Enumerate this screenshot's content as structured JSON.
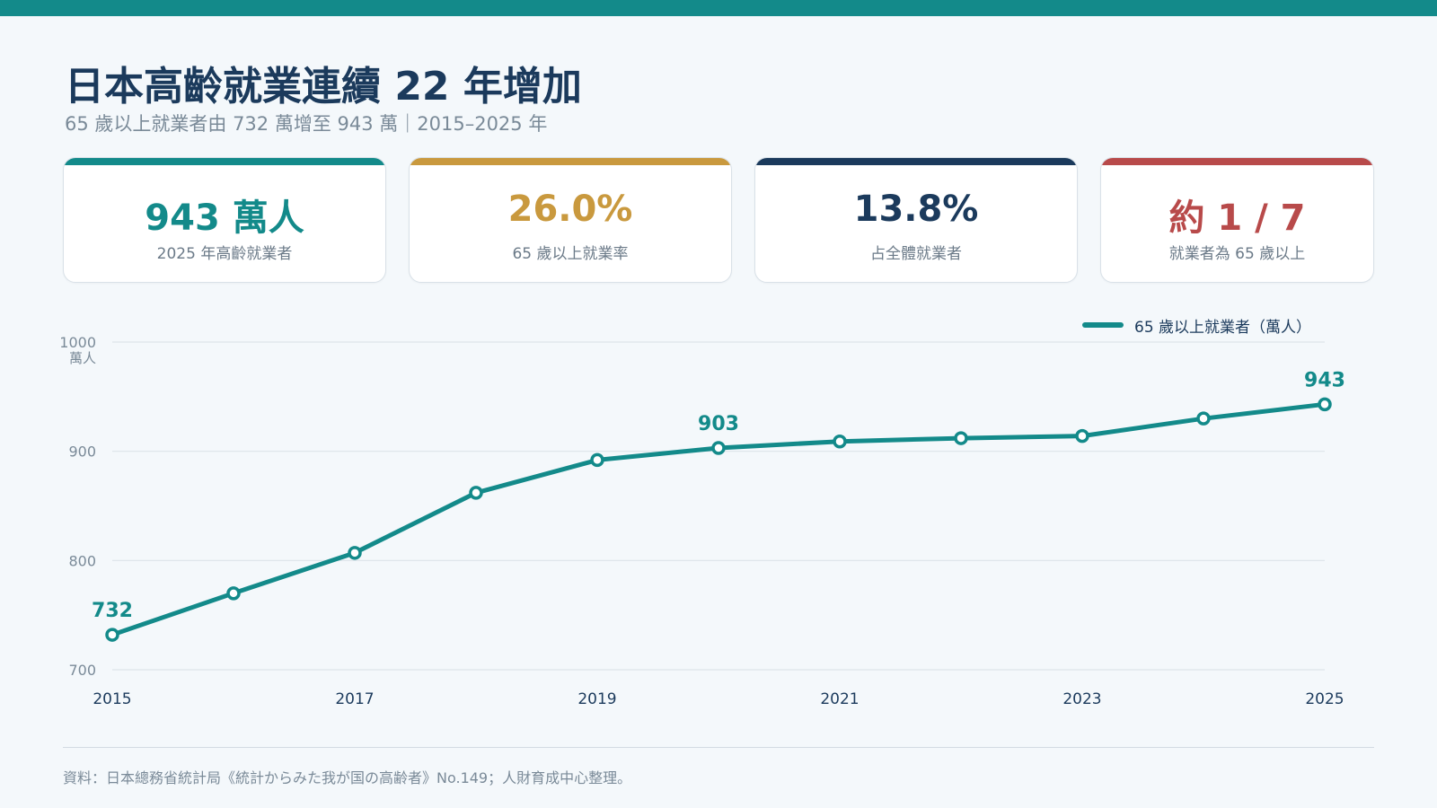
{
  "header": {
    "title": "日本高齡就業連續 22 年增加",
    "subtitle": "65 歲以上就業者由 732 萬增至 943 萬｜2015–2025 年"
  },
  "kpis": [
    {
      "value": "943 萬人",
      "label": "2025 年高齡就業者",
      "color": "#138a8a"
    },
    {
      "value": "26.0%",
      "label": "65 歲以上就業率",
      "color": "#c9993e"
    },
    {
      "value": "13.8%",
      "label": "占全體就業者",
      "color": "#1b3a5c"
    },
    {
      "value": "約 1 / 7",
      "label": "就業者為 65 歲以上",
      "color": "#b84a4a"
    }
  ],
  "chart_data": {
    "type": "line",
    "x": [
      2015,
      2016,
      2017,
      2018,
      2019,
      2020,
      2021,
      2022,
      2023,
      2024,
      2025
    ],
    "series": [
      {
        "name": "65 歲以上就業者（萬人）",
        "values": [
          732,
          770,
          807,
          862,
          892,
          903,
          909,
          912,
          914,
          930,
          943
        ],
        "color": "#138a8a"
      }
    ],
    "data_labels": [
      {
        "x": 2015,
        "text": "732"
      },
      {
        "x": 2020,
        "text": "903"
      },
      {
        "x": 2025,
        "text": "943"
      }
    ],
    "x_ticks": [
      2015,
      2017,
      2019,
      2021,
      2023,
      2025
    ],
    "y_ticks": [
      700,
      800,
      900,
      1000
    ],
    "ylim": [
      700,
      1000
    ],
    "xlim": [
      2015,
      2025
    ],
    "y_unit": "萬人",
    "grid": true,
    "legend_position": "top-right"
  },
  "footer": {
    "source": "資料：日本總務省統計局《統計からみた我が国の高齢者》No.149；人財育成中心整理。"
  }
}
